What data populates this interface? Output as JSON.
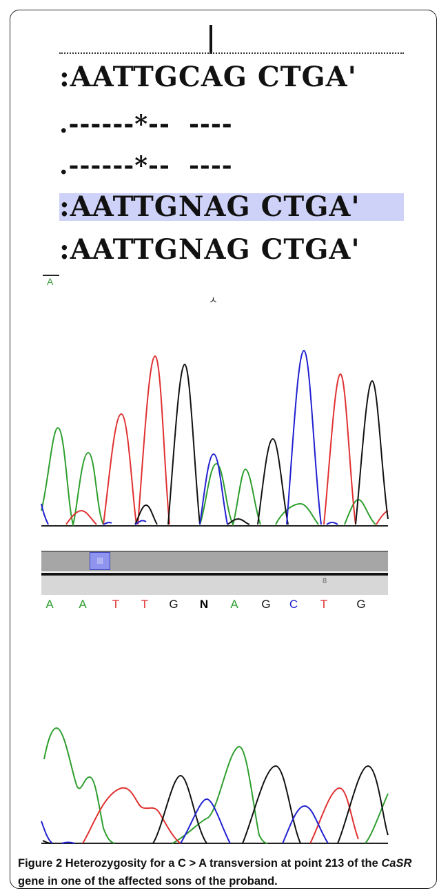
{
  "alignment": {
    "rows": [
      "AATTGCAG CTGA'",
      "------*--  ----",
      "------*--  ----",
      "AATTGNAG CTGA'",
      "AATTGNAG CTGA'"
    ],
    "row_prefixes": [
      ":",
      ".",
      ".",
      ":",
      ":"
    ],
    "highlight_color": "#cfd2f8"
  },
  "markers": {
    "small_letter": "A",
    "cursor_glyph": "ㅅ",
    "position_number": "8"
  },
  "base_calls": [
    {
      "base": "A",
      "color": "#2e9e2e"
    },
    {
      "base": "A",
      "color": "#2e9e2e"
    },
    {
      "base": "T",
      "color": "#e03030"
    },
    {
      "base": "T",
      "color": "#e03030"
    },
    {
      "base": "G",
      "color": "#111111"
    },
    {
      "base": "N",
      "color": "#000000"
    },
    {
      "base": "A",
      "color": "#2e9e2e"
    },
    {
      "base": "G",
      "color": "#111111"
    },
    {
      "base": "C",
      "color": "#2020d0"
    },
    {
      "base": "T",
      "color": "#e03030"
    },
    {
      "base": "G",
      "color": "#111111"
    }
  ],
  "colors": {
    "A": "#2e9e2e",
    "T": "#e03030",
    "C": "#2020d0",
    "G": "#111111"
  },
  "caption": {
    "label": "Figure 2",
    "text_1": " Heterozygosity for a C > A transversion at point 213 of the ",
    "gene": "CaSR",
    "text_2": " gene in one of the affected sons of the proband."
  }
}
